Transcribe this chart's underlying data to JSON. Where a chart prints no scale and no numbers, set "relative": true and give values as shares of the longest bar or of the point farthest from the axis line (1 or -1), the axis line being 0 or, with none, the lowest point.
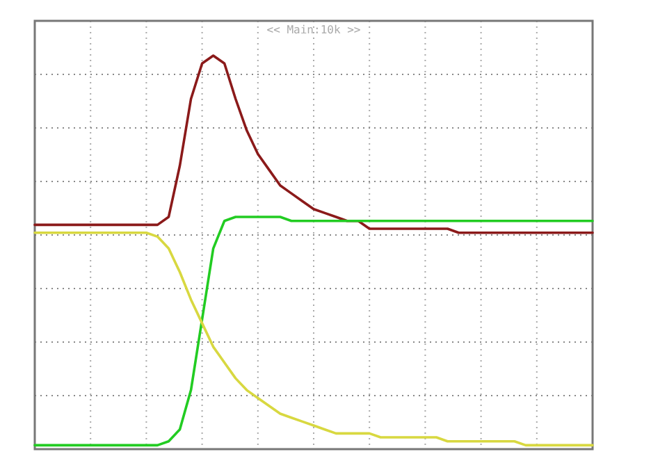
{
  "chart_data": {
    "type": "line",
    "relative": true,
    "grid": true,
    "marker": "none",
    "line_style": "solid",
    "annotations": [
      "<< Main:10k >>"
    ],
    "categories": [
      null,
      null,
      null,
      null,
      null,
      null,
      null,
      null,
      null,
      null,
      null,
      null,
      null,
      null,
      null,
      null,
      null,
      null,
      null,
      null,
      null,
      null,
      null,
      null,
      null,
      null,
      null,
      null,
      null,
      null,
      null,
      null,
      null,
      null,
      null,
      null,
      null,
      null,
      null,
      null,
      null,
      null,
      null,
      null,
      null,
      null,
      null,
      null,
      null,
      null,
      null
    ],
    "series": [
      {
        "color": "#8b1a1a",
        "values": [
          0.57,
          0.57,
          0.57,
          0.57,
          0.57,
          0.57,
          0.57,
          0.57,
          0.57,
          0.57,
          0.57,
          0.57,
          0.59,
          0.72,
          0.89,
          0.98,
          1,
          0.98,
          0.89,
          0.81,
          0.75,
          0.71,
          0.67,
          0.65,
          0.63,
          0.61,
          0.6,
          0.59,
          0.58,
          0.58,
          0.56,
          0.56,
          0.56,
          0.56,
          0.56,
          0.56,
          0.56,
          0.56,
          0.55,
          0.55,
          0.55,
          0.55,
          0.55,
          0.55,
          0.55,
          0.55,
          0.55,
          0.55,
          0.55,
          0.55,
          0.55
        ]
      },
      {
        "color": "#22cc22",
        "values": [
          0.01,
          0.01,
          0.01,
          0.01,
          0.01,
          0.01,
          0.01,
          0.01,
          0.01,
          0.01,
          0.01,
          0.01,
          0.02,
          0.05,
          0.15,
          0.33,
          0.51,
          0.58,
          0.59,
          0.59,
          0.59,
          0.59,
          0.59,
          0.58,
          0.58,
          0.58,
          0.58,
          0.58,
          0.58,
          0.58,
          0.58,
          0.58,
          0.58,
          0.58,
          0.58,
          0.58,
          0.58,
          0.58,
          0.58,
          0.58,
          0.58,
          0.58,
          0.58,
          0.58,
          0.58,
          0.58,
          0.58,
          0.58,
          0.58,
          0.58,
          0.58
        ]
      },
      {
        "color": "#d8d840",
        "values": [
          0.55,
          0.55,
          0.55,
          0.55,
          0.55,
          0.55,
          0.55,
          0.55,
          0.55,
          0.55,
          0.55,
          0.54,
          0.51,
          0.45,
          0.38,
          0.32,
          0.26,
          0.22,
          0.18,
          0.15,
          0.13,
          0.11,
          0.09,
          0.08,
          0.07,
          0.06,
          0.05,
          0.04,
          0.04,
          0.04,
          0.04,
          0.03,
          0.03,
          0.03,
          0.03,
          0.03,
          0.03,
          0.02,
          0.02,
          0.02,
          0.02,
          0.02,
          0.02,
          0.02,
          0.01,
          0.01,
          0.01,
          0.01,
          0.01,
          0.01,
          0.01
        ]
      }
    ]
  }
}
